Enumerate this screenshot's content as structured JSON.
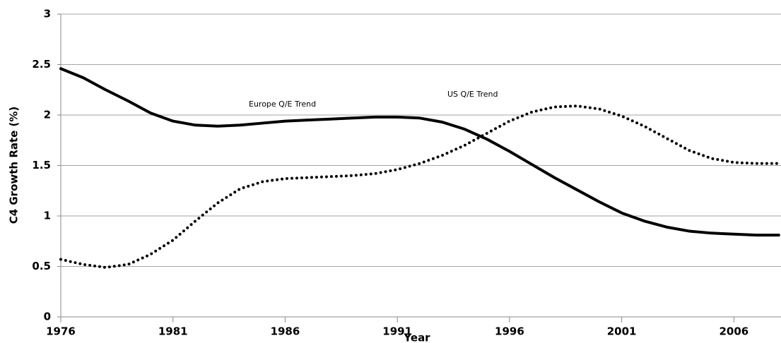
{
  "chart_data": {
    "type": "line",
    "x_label": "Year",
    "y_label": "C4 Growth Rate (%)",
    "x": [
      1976,
      1977,
      1978,
      1979,
      1980,
      1981,
      1982,
      1983,
      1984,
      1985,
      1986,
      1987,
      1988,
      1989,
      1990,
      1991,
      1992,
      1993,
      1994,
      1995,
      1996,
      1997,
      1998,
      1999,
      2000,
      2001,
      2002,
      2003,
      2004,
      2005,
      2006,
      2007,
      2008
    ],
    "series": [
      {
        "name": "Europe Q/E Trend",
        "color": "#000000",
        "style": "solid",
        "values": [
          2.46,
          2.37,
          2.25,
          2.14,
          2.02,
          1.94,
          1.9,
          1.89,
          1.9,
          1.92,
          1.94,
          1.95,
          1.96,
          1.97,
          1.98,
          1.98,
          1.97,
          1.93,
          1.86,
          1.76,
          1.64,
          1.51,
          1.38,
          1.26,
          1.14,
          1.03,
          0.95,
          0.89,
          0.85,
          0.83,
          0.82,
          0.81,
          0.81
        ]
      },
      {
        "name": "US Q/E Trend",
        "color": "#000000",
        "style": "dotted",
        "values": [
          0.57,
          0.52,
          0.49,
          0.52,
          0.62,
          0.76,
          0.95,
          1.13,
          1.27,
          1.34,
          1.37,
          1.38,
          1.39,
          1.4,
          1.42,
          1.46,
          1.52,
          1.6,
          1.7,
          1.82,
          1.94,
          2.03,
          2.08,
          2.09,
          2.06,
          1.99,
          1.89,
          1.77,
          1.65,
          1.57,
          1.53,
          1.52,
          1.52
        ]
      }
    ],
    "xlim": [
      1976,
      2008.1
    ],
    "xticks": [
      1976,
      1981,
      1986,
      1991,
      1996,
      2001,
      2006
    ],
    "ylim": [
      0,
      3
    ],
    "yticks": [
      0,
      0.5,
      1,
      1.5,
      2,
      2.5,
      3
    ],
    "grid": true
  }
}
